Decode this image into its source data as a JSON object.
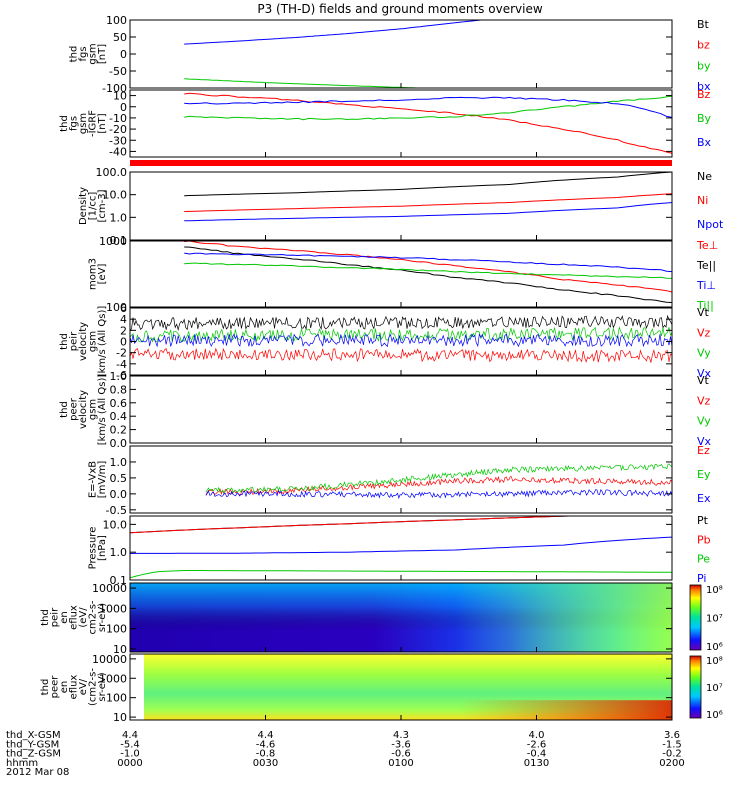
{
  "title": "P3 (TH-D) fields and ground moments overview",
  "date_label": "2012 Mar 08",
  "orbit_rows": [
    {
      "label": "thd_X-GSM",
      "values": [
        "4.4",
        "4.4",
        "4.3",
        "4.0",
        "3.6"
      ]
    },
    {
      "label": "thd_Y-GSM",
      "values": [
        "-5.4",
        "-4.6",
        "-3.6",
        "-2.6",
        "-1.5"
      ]
    },
    {
      "label": "thd_Z-GSM",
      "values": [
        "-1.0",
        "-0.8",
        "-0.6",
        "-0.4",
        "-0.2"
      ]
    },
    {
      "label": "hhmm",
      "values": [
        "0000",
        "0030",
        "0100",
        "0130",
        "0200"
      ]
    }
  ],
  "colorbar_labels": {
    "top": "10⁸",
    "mid": "10⁷",
    "bottom": "10⁶"
  },
  "chart_data": [
    {
      "type": "line",
      "ylabel": [
        "thd",
        "fgs",
        "gsm",
        "[nT]"
      ],
      "ylim": [
        -100,
        100
      ],
      "yticks": [
        -50,
        0,
        50,
        100
      ],
      "ytick_labels": [
        "-50",
        "0",
        "50",
        "100"
      ],
      "bottom_label": "-100",
      "series": [
        {
          "name": "Bt",
          "color": "#000000",
          "x": [],
          "y": []
        },
        {
          "name": "bz",
          "color": "#ff0000",
          "x": [],
          "y": []
        },
        {
          "name": "by",
          "color": "#00c800",
          "x": [
            0.1,
            0.25,
            0.4,
            0.55
          ],
          "y": [
            -73,
            -84,
            -93,
            -101
          ]
        },
        {
          "name": "bx",
          "color": "#0000ff",
          "x": [
            0.1,
            0.2,
            0.3,
            0.4,
            0.5,
            0.6,
            0.66
          ],
          "y": [
            29,
            38,
            48,
            60,
            74,
            92,
            102
          ]
        }
      ]
    },
    {
      "type": "line",
      "ylabel": [
        "thd",
        "fgs",
        "gsm",
        "-IGRF",
        "[nT]"
      ],
      "ylim": [
        -45,
        15
      ],
      "yticks": [
        -40,
        -30,
        -20,
        -10,
        0,
        10
      ],
      "ytick_labels": [
        "-40",
        "-30",
        "-20",
        "-10",
        "0",
        "10"
      ],
      "series": [
        {
          "name": "Bz",
          "color": "#ff0000",
          "x": [
            0.1,
            0.2,
            0.3,
            0.4,
            0.5,
            0.6,
            0.7,
            0.8,
            0.9,
            1.0
          ],
          "y": [
            12,
            9,
            6,
            2,
            -2,
            -6,
            -12,
            -20,
            -30,
            -42
          ]
        },
        {
          "name": "By",
          "color": "#00c800",
          "x": [
            0.1,
            0.2,
            0.3,
            0.4,
            0.5,
            0.6,
            0.7,
            0.8,
            0.9,
            1.0
          ],
          "y": [
            -9,
            -10,
            -11,
            -11,
            -10,
            -9,
            -5,
            0,
            5,
            9
          ]
        },
        {
          "name": "Bx",
          "color": "#0000ff",
          "x": [
            0.1,
            0.2,
            0.3,
            0.4,
            0.5,
            0.6,
            0.7,
            0.8,
            0.9,
            0.95,
            1.0
          ],
          "y": [
            3,
            3,
            4,
            5,
            6,
            8,
            8,
            6,
            3,
            -2,
            -10
          ]
        }
      ]
    },
    {
      "type": "line",
      "scale": "log",
      "ylabel": [
        "Density",
        "[1/cc]",
        "[cm-3]"
      ],
      "ylim": [
        0.1,
        100
      ],
      "yticks": [
        0.1,
        1,
        10,
        100
      ],
      "ytick_labels": [
        "0.1",
        "1.0",
        "10.0",
        "100.0"
      ],
      "series": [
        {
          "name": "Ne",
          "color": "#000000",
          "x": [
            0.1,
            0.3,
            0.5,
            0.7,
            0.9,
            1.0
          ],
          "y": [
            9,
            12,
            17,
            28,
            60,
            100
          ]
        },
        {
          "name": "Ni",
          "color": "#ff0000",
          "x": [
            0.1,
            0.3,
            0.5,
            0.7,
            0.9,
            1.0
          ],
          "y": [
            1.8,
            2.4,
            3.1,
            4.5,
            7.5,
            11
          ]
        },
        {
          "name": "Npot",
          "color": "#0000ff",
          "x": [
            0.1,
            0.3,
            0.5,
            0.7,
            0.9,
            1.0
          ],
          "y": [
            0.7,
            0.9,
            1.1,
            1.5,
            2.6,
            4.5
          ]
        }
      ]
    },
    {
      "type": "line",
      "scale": "log",
      "ylabel": [
        "mom3",
        "[eV]"
      ],
      "ylim": [
        100,
        1000
      ],
      "yticks": [
        100,
        1000
      ],
      "ytick_labels": [
        "100",
        "1000"
      ],
      "series": [
        {
          "name": "Te⊥",
          "color": "#ff0000",
          "x": [
            0.1,
            0.2,
            0.4,
            0.6,
            0.8,
            1.0
          ],
          "y": [
            1000,
            820,
            620,
            420,
            260,
            170
          ]
        },
        {
          "name": "Te||",
          "color": "#000000",
          "x": [
            0.1,
            0.2,
            0.4,
            0.6,
            0.8,
            1.0
          ],
          "y": [
            820,
            640,
            440,
            280,
            180,
            115
          ]
        },
        {
          "name": "Ti⊥",
          "color": "#0000ff",
          "x": [
            0.1,
            0.3,
            0.5,
            0.7,
            0.9,
            1.0
          ],
          "y": [
            650,
            610,
            560,
            480,
            400,
            350
          ]
        },
        {
          "name": "Ti||",
          "color": "#00c800",
          "x": [
            0.1,
            0.3,
            0.5,
            0.7,
            0.9,
            1.0
          ],
          "y": [
            460,
            420,
            370,
            320,
            290,
            275
          ]
        }
      ]
    },
    {
      "type": "line",
      "ylabel": [
        "thd",
        "peir",
        "velocity",
        "gsm",
        "[km/s (All Qs)]"
      ],
      "ylim": [
        -6,
        6
      ],
      "yticks": [
        -6,
        -4,
        -2,
        0,
        2,
        4,
        6
      ],
      "ytick_labels": [
        "-6",
        "-4",
        "-2",
        "0",
        "2",
        "4",
        "6"
      ],
      "series": [
        {
          "name": "Vt",
          "color": "#000000",
          "x": [
            0,
            1
          ],
          "y": [
            3.2,
            3.5
          ]
        },
        {
          "name": "Vz",
          "color": "#ff0000",
          "x": [
            0,
            1
          ],
          "y": [
            -2.2,
            -2.7
          ]
        },
        {
          "name": "Vy",
          "color": "#00c800",
          "x": [
            0,
            1
          ],
          "y": [
            1.0,
            1.5
          ]
        },
        {
          "name": "Vx",
          "color": "#0000ff",
          "x": [
            0,
            1
          ],
          "y": [
            0.2,
            0.2
          ]
        }
      ]
    },
    {
      "type": "line",
      "ylabel": [
        "thd",
        "peer",
        "velocity",
        "gsm",
        "[km/s (All Qs)]"
      ],
      "ylim": [
        0,
        1
      ],
      "yticks": [
        0,
        0.2,
        0.4,
        0.6,
        0.8,
        1.0
      ],
      "ytick_labels": [
        "0.0",
        "0.2",
        "0.4",
        "0.6",
        "0.8",
        "1.0"
      ],
      "series": [
        {
          "name": "Vt",
          "color": "#000000",
          "x": [],
          "y": []
        },
        {
          "name": "Vz",
          "color": "#ff0000",
          "x": [],
          "y": []
        },
        {
          "name": "Vy",
          "color": "#00c800",
          "x": [],
          "y": []
        },
        {
          "name": "Vx",
          "color": "#0000ff",
          "x": [],
          "y": []
        }
      ]
    },
    {
      "type": "line",
      "ylabel": [
        "E=-VxB",
        "[mV/m]"
      ],
      "ylim": [
        -0.6,
        1.5
      ],
      "yticks": [
        -0.5,
        0,
        0.5,
        1.0
      ],
      "ytick_labels": [
        "-0.5",
        "0.0",
        "0.5",
        "1.0"
      ],
      "series": [
        {
          "name": "Ez",
          "color": "#ff0000",
          "x": [
            0.14,
            0.3,
            0.5,
            0.6,
            0.7,
            0.85,
            1.0
          ],
          "y": [
            0.05,
            0.1,
            0.3,
            0.4,
            0.45,
            0.4,
            0.35
          ]
        },
        {
          "name": "Ey",
          "color": "#00c800",
          "x": [
            0.14,
            0.3,
            0.45,
            0.6,
            0.7,
            0.85,
            1.0
          ],
          "y": [
            0.1,
            0.15,
            0.35,
            0.6,
            0.75,
            0.8,
            0.85
          ]
        },
        {
          "name": "Ex",
          "color": "#0000ff",
          "x": [
            0.14,
            0.3,
            0.5,
            0.7,
            0.85,
            1.0
          ],
          "y": [
            0.0,
            0.0,
            -0.05,
            0.0,
            0.05,
            0.0
          ]
        }
      ]
    },
    {
      "type": "line",
      "scale": "log",
      "ylabel": [
        "Pressure",
        "[nPa]"
      ],
      "ylim": [
        0.1,
        20
      ],
      "yticks": [
        0.1,
        1,
        10
      ],
      "ytick_labels": [
        "0.1",
        "1.0",
        "10.0"
      ],
      "series": [
        {
          "name": "Pt",
          "color": "#000000",
          "x": [
            0.0,
            0.2,
            0.4,
            0.6,
            0.81
          ],
          "y": [
            5,
            7.5,
            10.5,
            14.5,
            20
          ]
        },
        {
          "name": "Pb",
          "color": "#ff0000",
          "x": [
            0.0,
            0.2,
            0.4,
            0.6,
            0.81
          ],
          "y": [
            5,
            7.5,
            10.5,
            14.5,
            20
          ]
        },
        {
          "name": "Pe",
          "color": "#00c800",
          "x": [
            0.0,
            0.05,
            0.1,
            0.4,
            0.7,
            1.0
          ],
          "y": [
            0.12,
            0.2,
            0.22,
            0.21,
            0.2,
            0.19
          ]
        },
        {
          "name": "Pi",
          "color": "#0000ff",
          "x": [
            0.0,
            0.2,
            0.4,
            0.6,
            0.8,
            1.0
          ],
          "y": [
            0.9,
            0.92,
            1.0,
            1.2,
            1.8,
            3.5
          ]
        }
      ]
    },
    {
      "type": "heatmap",
      "ylabel": [
        "thd",
        "peir",
        "en",
        "eflux",
        "(eV/",
        "cm2-s-",
        "sr-eV)"
      ],
      "yticks": [
        10,
        100,
        1000,
        10000
      ],
      "ytick_labels": [
        "10",
        "100",
        "1000",
        "10000"
      ],
      "colorbar_range_log10": [
        6,
        8
      ]
    },
    {
      "type": "heatmap",
      "ylabel": [
        "thd",
        "peer",
        "en",
        "eflux",
        "eV/",
        "(cm2-s-",
        "sr-eV)"
      ],
      "yticks": [
        10,
        100,
        1000,
        10000
      ],
      "ytick_labels": [
        "10",
        "100",
        "1000",
        "10000"
      ],
      "colorbar_range_log10": [
        6,
        8
      ]
    }
  ]
}
